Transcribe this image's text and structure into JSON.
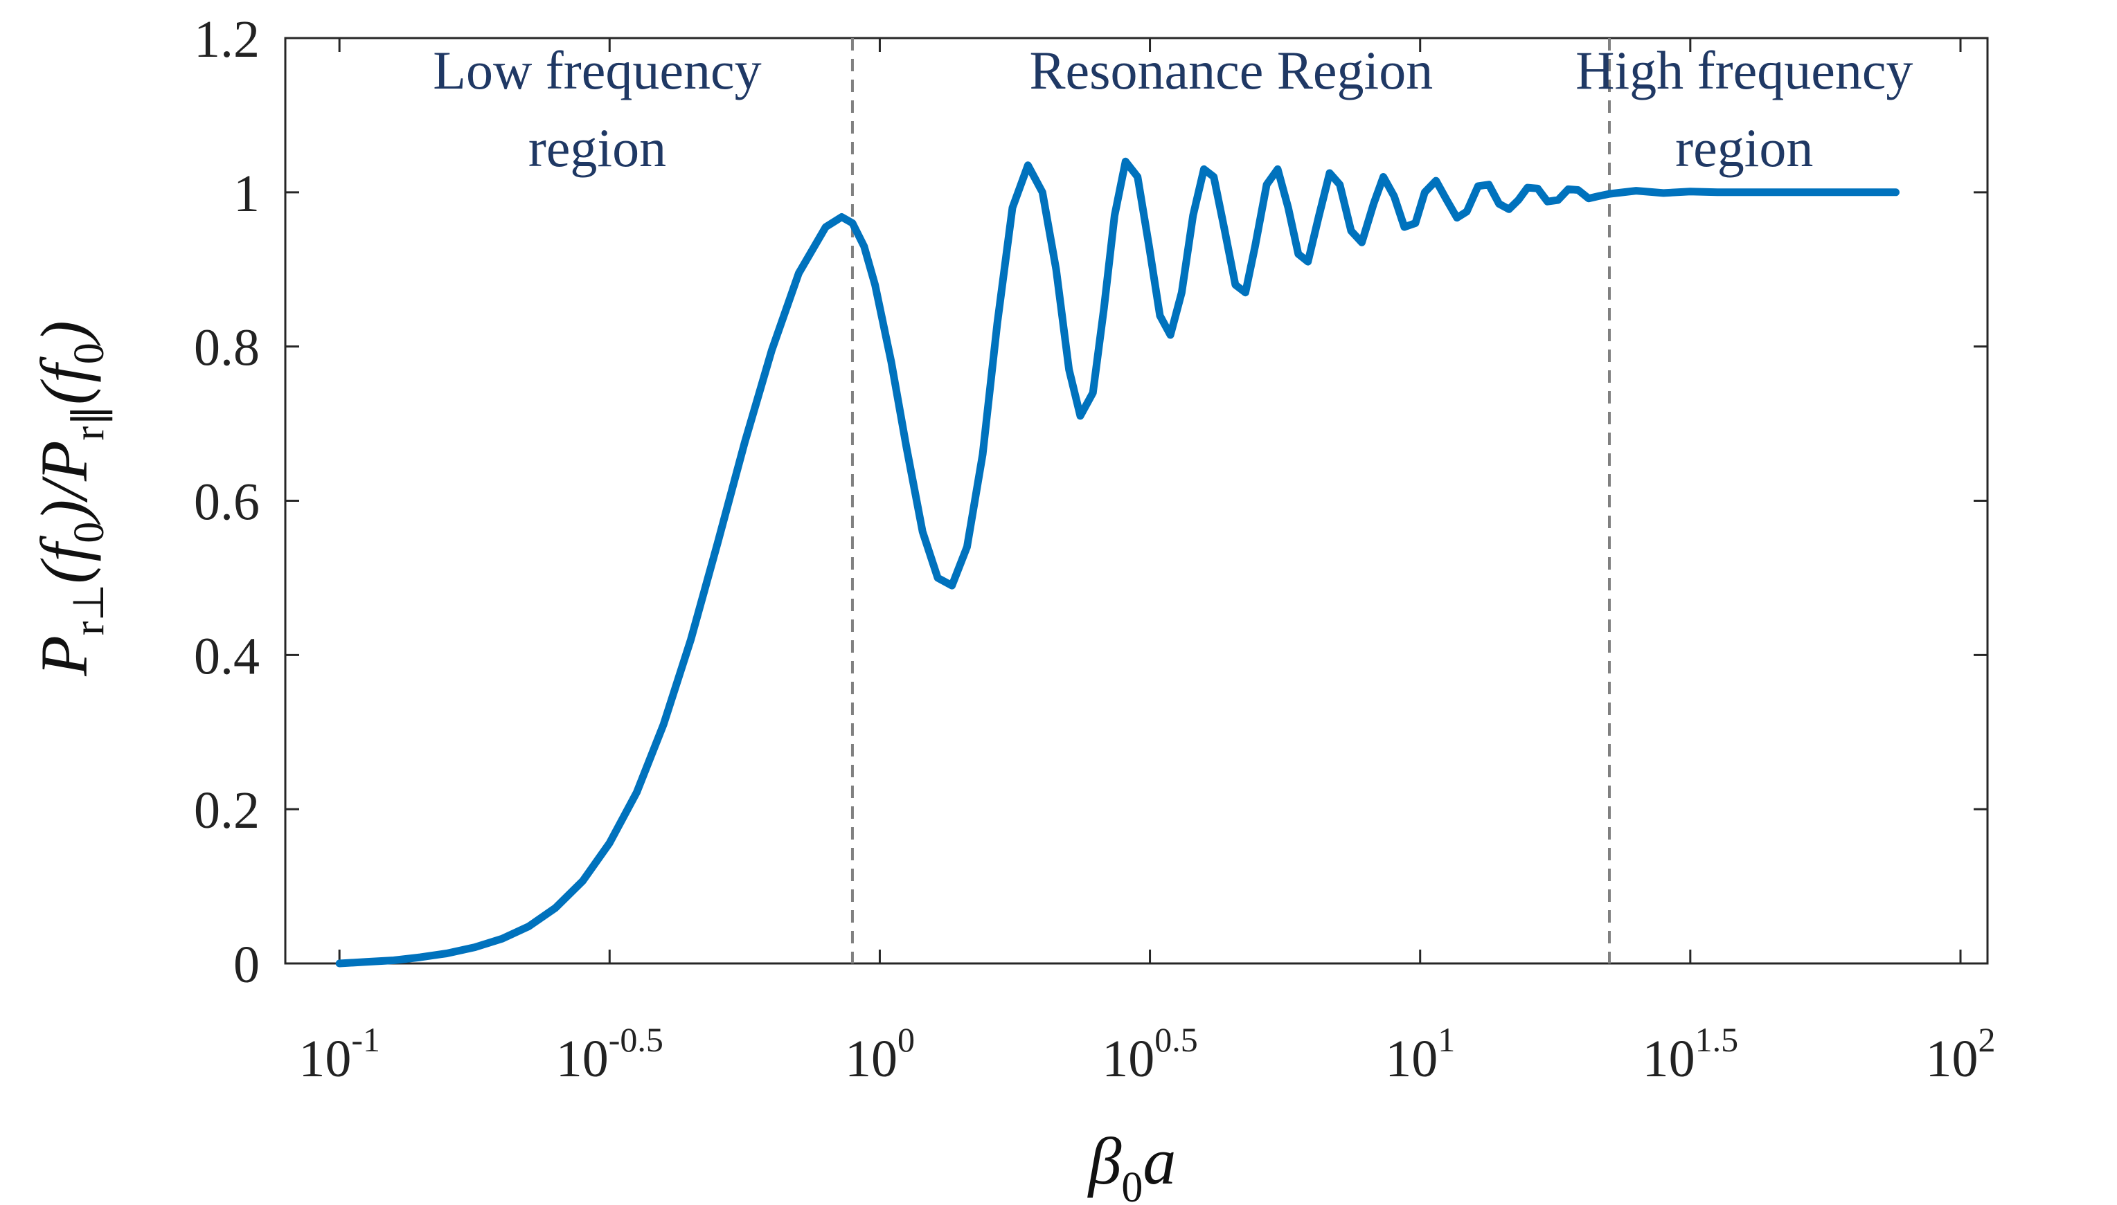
{
  "chart_data": {
    "type": "line",
    "x_scale": "log10",
    "xlim": [
      0.0794,
      112.2
    ],
    "ylim": [
      0,
      1.2
    ],
    "grid": false,
    "xlabel": {
      "main": "β",
      "sub": "0",
      "tail": "a"
    },
    "ylabel": "P_r⊥(f_0)/P_r∥(f_0)",
    "x_ticks": [
      {
        "value": 0.1,
        "base": "10",
        "exp": "-1"
      },
      {
        "value": 0.3162,
        "base": "10",
        "exp": "-0.5"
      },
      {
        "value": 1,
        "base": "10",
        "exp": "0"
      },
      {
        "value": 3.162,
        "base": "10",
        "exp": "0.5"
      },
      {
        "value": 10,
        "base": "10",
        "exp": "1"
      },
      {
        "value": 31.62,
        "base": "10",
        "exp": "1.5"
      },
      {
        "value": 100,
        "base": "10",
        "exp": "2"
      }
    ],
    "y_ticks": [
      {
        "value": 0,
        "label": "0"
      },
      {
        "value": 0.2,
        "label": "0.2"
      },
      {
        "value": 0.4,
        "label": "0.4"
      },
      {
        "value": 0.6,
        "label": "0.6"
      },
      {
        "value": 0.8,
        "label": "0.8"
      },
      {
        "value": 1,
        "label": "1"
      },
      {
        "value": 1.2,
        "label": "1.2"
      }
    ],
    "dividers": [
      0.89,
      22.4
    ],
    "regions": [
      {
        "lines": [
          "Low frequency",
          "region"
        ],
        "x": 0.3
      },
      {
        "lines": [
          "Resonance Region"
        ],
        "x": 4.47
      },
      {
        "lines": [
          "High frequency",
          "region"
        ],
        "x": 39.8
      }
    ],
    "series": [
      {
        "name": "Pr⊥/Pr∥",
        "color": "#0072BD",
        "x": [
          0.1,
          0.112,
          0.126,
          0.141,
          0.158,
          0.178,
          0.2,
          0.224,
          0.251,
          0.282,
          0.316,
          0.355,
          0.398,
          0.447,
          0.501,
          0.562,
          0.631,
          0.708,
          0.794,
          0.85,
          0.89,
          0.935,
          0.98,
          1.05,
          1.12,
          1.2,
          1.28,
          1.36,
          1.45,
          1.55,
          1.65,
          1.76,
          1.88,
          2.0,
          2.12,
          2.24,
          2.35,
          2.48,
          2.6,
          2.72,
          2.85,
          3.0,
          3.15,
          3.3,
          3.45,
          3.62,
          3.8,
          3.98,
          4.15,
          4.35,
          4.55,
          4.75,
          4.95,
          5.2,
          5.45,
          5.7,
          5.95,
          6.2,
          6.5,
          6.8,
          7.1,
          7.45,
          7.8,
          8.2,
          8.55,
          8.95,
          9.35,
          9.8,
          10.2,
          10.7,
          11.2,
          11.7,
          12.2,
          12.8,
          13.4,
          14.0,
          14.6,
          15.2,
          15.8,
          16.5,
          17.2,
          18.0,
          18.8,
          19.6,
          20.5,
          21.4,
          22.4,
          25.1,
          28.2,
          31.6,
          35.5,
          39.8,
          44.7,
          50.1,
          56.2,
          63.1,
          70.8,
          75.9
        ],
        "y": [
          0.0,
          0.002,
          0.004,
          0.008,
          0.013,
          0.021,
          0.032,
          0.048,
          0.072,
          0.107,
          0.156,
          0.222,
          0.31,
          0.42,
          0.545,
          0.675,
          0.795,
          0.895,
          0.955,
          0.968,
          0.96,
          0.93,
          0.88,
          0.78,
          0.67,
          0.56,
          0.5,
          0.49,
          0.54,
          0.66,
          0.83,
          0.98,
          1.035,
          1.0,
          0.9,
          0.77,
          0.71,
          0.74,
          0.85,
          0.97,
          1.04,
          1.02,
          0.93,
          0.84,
          0.815,
          0.87,
          0.97,
          1.03,
          1.02,
          0.95,
          0.88,
          0.87,
          0.93,
          1.01,
          1.03,
          0.98,
          0.92,
          0.91,
          0.97,
          1.025,
          1.01,
          0.95,
          0.935,
          0.985,
          1.02,
          0.995,
          0.955,
          0.96,
          1.0,
          1.015,
          0.99,
          0.967,
          0.975,
          1.008,
          1.01,
          0.985,
          0.978,
          0.99,
          1.006,
          1.005,
          0.988,
          0.99,
          1.004,
          1.003,
          0.992,
          0.995,
          0.998,
          1.002,
          0.999,
          1.001,
          1.0,
          1.0,
          1.0,
          1.0,
          1.0,
          1.0,
          1.0,
          1.0
        ]
      }
    ]
  },
  "colors": {
    "series": "#0072BD",
    "annotation_text": "#1F3864",
    "divider": "#808080",
    "axis": "#262626"
  }
}
